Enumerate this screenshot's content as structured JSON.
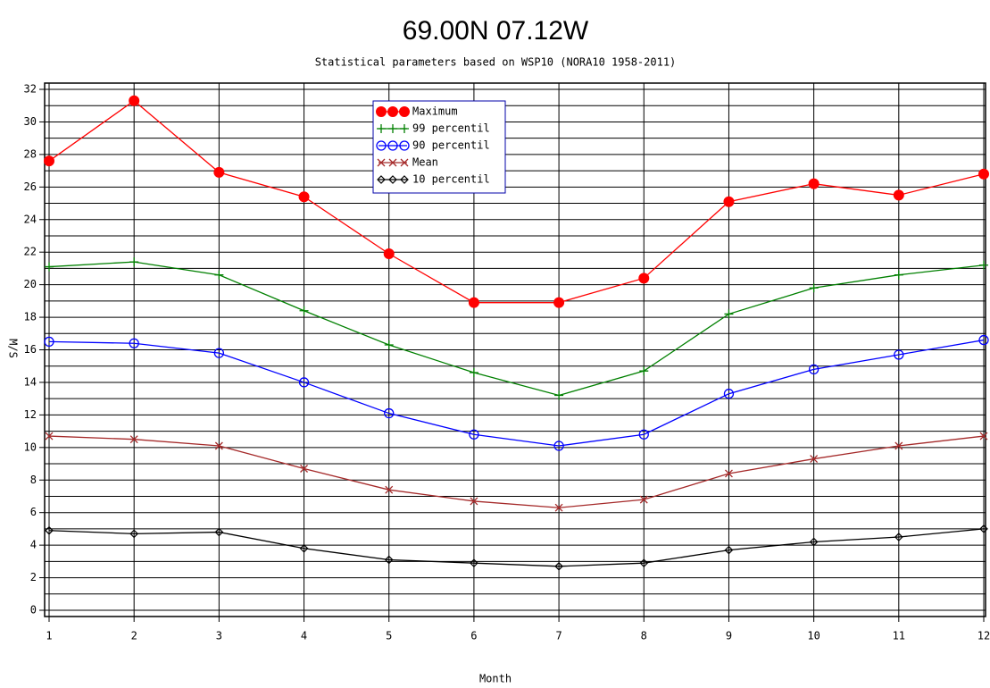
{
  "chart_data": {
    "type": "line",
    "title": "69.00N   07.12W",
    "subtitle": "Statistical parameters based on WSP10 (NORA10 1958-2011)",
    "x_label": "Month",
    "y_label": "M/S",
    "x": [
      1,
      2,
      3,
      4,
      5,
      6,
      7,
      8,
      9,
      10,
      11,
      12
    ],
    "xlim": [
      1,
      12
    ],
    "xticks": [
      1,
      2,
      3,
      4,
      5,
      6,
      7,
      8,
      9,
      10,
      11,
      12
    ],
    "ylim": [
      0,
      32
    ],
    "yticks": [
      0,
      2,
      4,
      6,
      8,
      10,
      12,
      14,
      16,
      18,
      20,
      22,
      24,
      26,
      28,
      30,
      32
    ],
    "minor_yticks": [
      1,
      3,
      5,
      7,
      9,
      11,
      13,
      15,
      17,
      19,
      21,
      23,
      25,
      27,
      29,
      31
    ],
    "grid": true,
    "legend": "top-center",
    "series": [
      {
        "name": "Maximum",
        "color": "#ff0000",
        "marker": "filled-circle",
        "values": [
          27.6,
          31.3,
          26.9,
          25.4,
          21.9,
          18.9,
          18.9,
          20.4,
          25.1,
          26.2,
          25.5,
          26.8
        ]
      },
      {
        "name": "99 percentil",
        "color": "#008000",
        "marker": "plus",
        "values": [
          21.1,
          21.4,
          20.6,
          18.4,
          16.3,
          14.6,
          13.2,
          14.7,
          18.2,
          19.8,
          20.6,
          21.2
        ]
      },
      {
        "name": "90 percentil",
        "color": "#0000ff",
        "marker": "circle",
        "values": [
          16.5,
          16.4,
          15.8,
          14.0,
          12.1,
          10.8,
          10.1,
          10.8,
          13.3,
          14.8,
          15.7,
          16.6
        ]
      },
      {
        "name": "Mean",
        "color": "#a52a2a",
        "marker": "cross",
        "values": [
          10.7,
          10.5,
          10.1,
          8.7,
          7.4,
          6.7,
          6.3,
          6.8,
          8.4,
          9.3,
          10.1,
          10.7
        ]
      },
      {
        "name": "10 percentil",
        "color": "#000000",
        "marker": "diamond",
        "values": [
          4.9,
          4.7,
          4.8,
          3.8,
          3.1,
          2.9,
          2.7,
          2.9,
          3.7,
          4.2,
          4.5,
          5.0
        ]
      }
    ]
  }
}
